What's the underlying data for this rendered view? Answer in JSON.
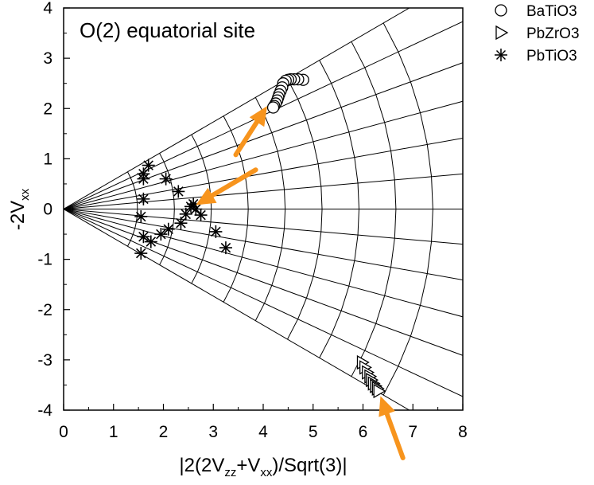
{
  "chart_data": {
    "type": "scatter",
    "title": "O(2) equatorial site",
    "xlabel": {
      "prefix": "|2(2V",
      "s1": "zz",
      "mid": "+V",
      "s2": "xx",
      "suffix": ")/Sqrt(3)|"
    },
    "ylabel": {
      "prefix": "-2V",
      "sub": "xx"
    },
    "xlim": [
      0,
      8
    ],
    "ylim": [
      -4,
      4
    ],
    "xticks": [
      0,
      1,
      2,
      3,
      4,
      5,
      6,
      7,
      8
    ],
    "yticks": [
      4,
      3,
      2,
      1,
      0,
      -1,
      -2,
      -3,
      -4
    ],
    "grid": "Czjzek polar grid (rays and iso-lines)",
    "legend_position": "top-right",
    "series": [
      {
        "name": "BaTiO3",
        "marker": "circle",
        "points": [
          [
            4.8,
            2.57
          ],
          [
            4.7,
            2.58
          ],
          [
            4.62,
            2.58
          ],
          [
            4.55,
            2.58
          ],
          [
            4.5,
            2.57
          ],
          [
            4.45,
            2.55
          ],
          [
            4.4,
            2.5
          ],
          [
            4.38,
            2.42
          ],
          [
            4.35,
            2.35
          ],
          [
            4.32,
            2.28
          ],
          [
            4.3,
            2.22
          ],
          [
            4.28,
            2.16
          ],
          [
            4.25,
            2.1
          ],
          [
            4.22,
            2.05
          ],
          [
            4.2,
            2.02
          ]
        ]
      },
      {
        "name": "PbZrO3",
        "marker": "triangle-right",
        "points": [
          [
            6.0,
            -3.05
          ],
          [
            6.05,
            -3.15
          ],
          [
            6.1,
            -3.25
          ],
          [
            6.15,
            -3.33
          ],
          [
            6.18,
            -3.4
          ],
          [
            6.22,
            -3.47
          ],
          [
            6.26,
            -3.52
          ],
          [
            6.3,
            -3.57
          ],
          [
            6.33,
            -3.62
          ]
        ]
      },
      {
        "name": "PbTiO3",
        "marker": "asterisk",
        "points": [
          [
            1.7,
            0.87
          ],
          [
            1.6,
            0.7
          ],
          [
            1.6,
            0.6
          ],
          [
            1.6,
            0.2
          ],
          [
            1.55,
            -0.15
          ],
          [
            1.6,
            -0.55
          ],
          [
            1.55,
            -0.88
          ],
          [
            1.75,
            -0.65
          ],
          [
            2.05,
            0.6
          ],
          [
            2.3,
            0.35
          ],
          [
            2.45,
            -0.1
          ],
          [
            2.35,
            -0.28
          ],
          [
            2.1,
            -0.4
          ],
          [
            1.95,
            -0.5
          ],
          [
            2.55,
            0.05
          ],
          [
            2.6,
            0.1
          ],
          [
            2.65,
            0.0
          ],
          [
            2.75,
            -0.12
          ],
          [
            3.05,
            -0.45
          ],
          [
            3.25,
            -0.77
          ]
        ]
      }
    ],
    "annotations": [
      {
        "type": "arrow",
        "color": "#f7941d",
        "from": [
          3.45,
          1.08
        ],
        "to": [
          4.08,
          2.05
        ]
      },
      {
        "type": "arrow",
        "color": "#f7941d",
        "from": [
          3.85,
          0.78
        ],
        "to": [
          2.65,
          0.08
        ]
      },
      {
        "type": "arrow",
        "color": "#f7941d",
        "from": [
          6.8,
          -4.95
        ],
        "to": [
          6.35,
          -3.72
        ]
      }
    ]
  }
}
